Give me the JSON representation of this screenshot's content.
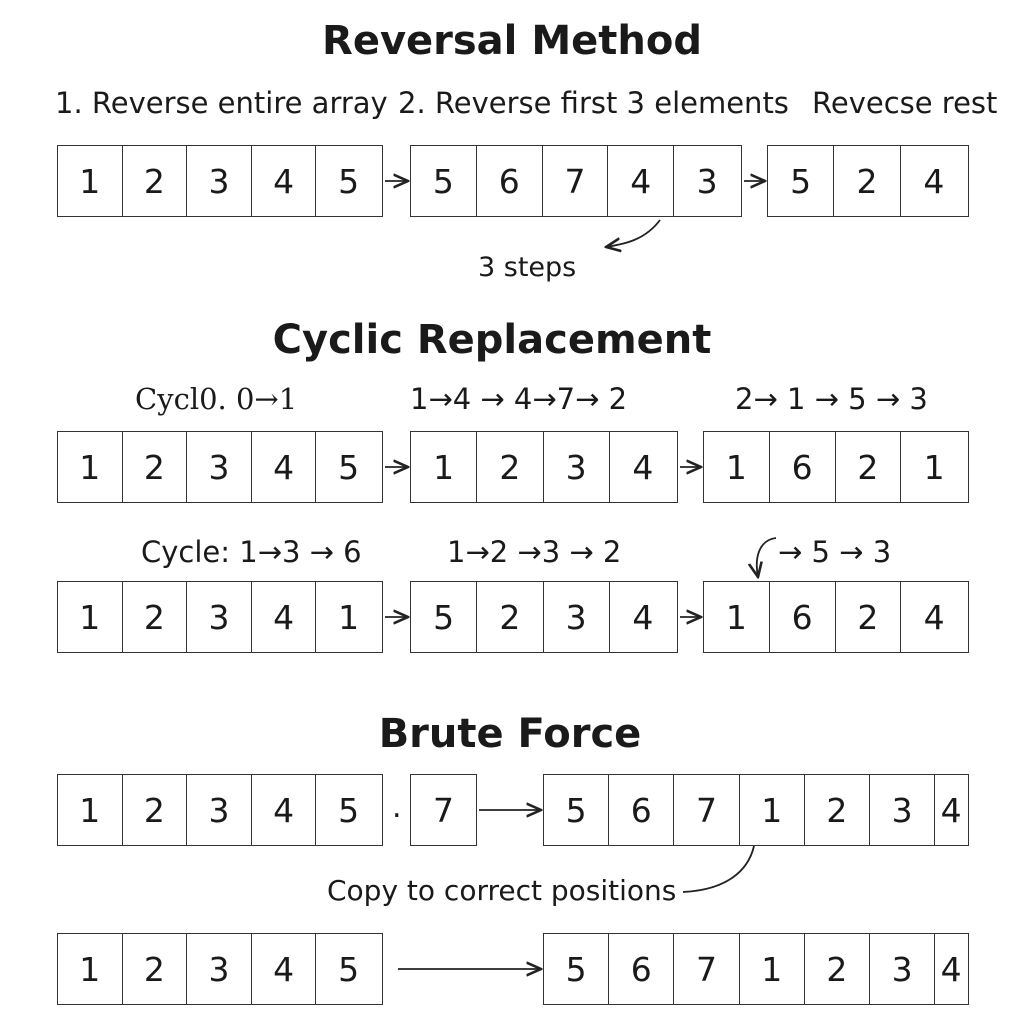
{
  "sections": {
    "reversal": {
      "title": "Reversal Method",
      "step1": "1. Reverse entire array",
      "step2": "2. Reverse first 3 elements",
      "step3": "Revecse rest",
      "array_a": [
        "1",
        "2",
        "3",
        "4",
        "5"
      ],
      "array_b": [
        "5",
        "6",
        "7",
        "4",
        "3"
      ],
      "array_c": [
        "5",
        "2",
        "4"
      ],
      "note": "3 steps"
    },
    "cyclic": {
      "title": "Cyclic Replacement",
      "row1_label_a": "Cycl0. 0→1",
      "row1_label_b": "1→4 → 4→7→ 2",
      "row1_label_c": "2→ 1 → 5 → 3",
      "row1_array_a": [
        "1",
        "2",
        "3",
        "4",
        "5"
      ],
      "row1_array_b": [
        "1",
        "2",
        "3",
        "4"
      ],
      "row1_array_c": [
        "1",
        "6",
        "2",
        "1"
      ],
      "row2_label_a": "Cycle: 1→3 → 6",
      "row2_label_b": "1→2 →3 → 2",
      "row2_label_c": "→ 5 → 3",
      "row2_array_a": [
        "1",
        "2",
        "3",
        "4",
        "1"
      ],
      "row2_array_b": [
        "5",
        "2",
        "3",
        "4"
      ],
      "row2_array_c": [
        "1",
        "6",
        "2",
        "4"
      ]
    },
    "brute": {
      "title": "Brute Force",
      "row1_array_a": [
        "1",
        "2",
        "3",
        "4",
        "5"
      ],
      "separator": ".",
      "row1_extra": "7",
      "row1_array_b": [
        "5",
        "6",
        "7",
        "1",
        "2",
        "3",
        "4"
      ],
      "note": "Copy to correct positions",
      "row2_array_a": [
        "1",
        "2",
        "3",
        "4",
        "5"
      ],
      "row2_array_b": [
        "5",
        "6",
        "7",
        "1",
        "2",
        "3",
        "4"
      ]
    }
  }
}
